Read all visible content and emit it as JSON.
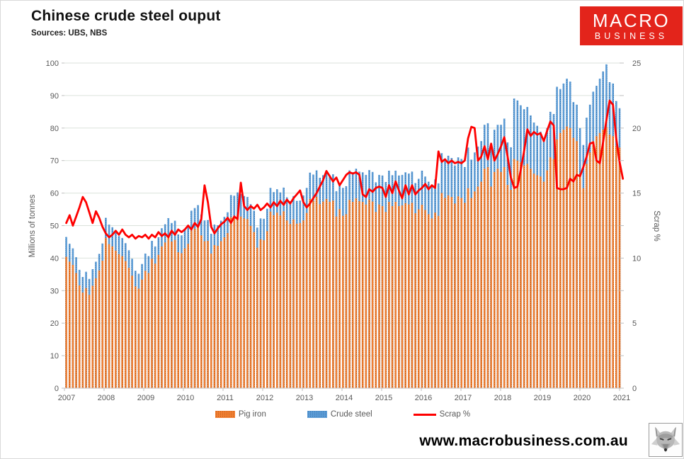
{
  "header": {
    "title": "Chinese crude steel ouput",
    "subtitle": "Sources: UBS, NBS"
  },
  "logo": {
    "line1": "MACRO",
    "line2": "BUSINESS",
    "bg_color": "#e3241b",
    "text_color": "#ffffff"
  },
  "footer": {
    "website": "www.macrobusiness.com.au",
    "icon": "wolf-logo"
  },
  "chart_data": {
    "type": "combo-bar-line",
    "title": "Chinese crude steel ouput",
    "frequency": "monthly",
    "start_period": "2007-01",
    "end_period": "2021-02",
    "grid": true,
    "left_axis": {
      "label": "Millions of tonnes",
      "min": 0,
      "max": 100,
      "tick_step": 10,
      "tick_labels": [
        "0",
        "10",
        "20",
        "30",
        "40",
        "50",
        "60",
        "70",
        "80",
        "90",
        "100"
      ]
    },
    "right_axis": {
      "label": "Scrap %",
      "min": 0,
      "max": 25,
      "tick_step": 5,
      "minor_tick_step": 2.5,
      "tick_labels": [
        "0",
        "5",
        "10",
        "15",
        "20",
        "25"
      ]
    },
    "x_axis": {
      "tick_labels": [
        "2007",
        "2008",
        "2009",
        "2010",
        "2011",
        "2012",
        "2013",
        "2014",
        "2015",
        "2016",
        "2017",
        "2018",
        "2019",
        "2020",
        "2021"
      ]
    },
    "legend": {
      "position": "bottom",
      "entries": [
        {
          "label": "Pig iron",
          "color": "#ED7D31",
          "type": "bar"
        },
        {
          "label": "Crude steel",
          "color": "#5B9BD5",
          "type": "bar"
        },
        {
          "label": "Scrap %",
          "color": "#FF0000",
          "type": "line"
        }
      ]
    },
    "series": {
      "crude_steel": {
        "name": "Crude steel",
        "type": "bar",
        "axis": "left",
        "color": "#5B9BD5",
        "values": [
          46.5,
          44.4,
          43.0,
          40.3,
          36.4,
          34.2,
          35.8,
          33.6,
          36.6,
          38.9,
          41.3,
          44.5,
          52.4,
          50.3,
          49.5,
          48.1,
          46.8,
          46.2,
          44.6,
          42.4,
          39.8,
          36.1,
          35.2,
          38.2,
          41.4,
          40.6,
          45.3,
          43.6,
          46.4,
          49.2,
          50.4,
          52.3,
          50.8,
          51.5,
          47.3,
          47.0,
          48.7,
          50.2,
          54.6,
          55.4,
          56.3,
          53.4,
          51.6,
          51.7,
          47.5,
          50.3,
          50.1,
          51.5,
          52.7,
          54.1,
          59.4,
          59.2,
          60.2,
          59.7,
          59.1,
          58.8,
          56.6,
          54.6,
          49.4,
          52.2,
          52.1,
          55.2,
          61.6,
          60.3,
          61.2,
          60.2,
          61.7,
          58.7,
          57.5,
          59.1,
          57.6,
          57.7,
          59.3,
          61.6,
          66.3,
          65.7,
          67.0,
          64.7,
          65.5,
          66.3,
          65.4,
          65.8,
          60.6,
          62.9,
          61.6,
          62.1,
          67.0,
          66.4,
          67.5,
          66.6,
          66.4,
          65.6,
          67.1,
          66.5,
          63.3,
          65.6,
          65.4,
          63.4,
          66.9,
          65.5,
          66.9,
          65.4,
          65.6,
          66.4,
          66.0,
          66.6,
          63.1,
          64.4,
          66.9,
          65.1,
          63.5,
          62.0,
          64.2,
          63.0,
          72.3,
          70.5,
          71.5,
          70.8,
          68.5,
          71.0,
          70.5,
          68.0,
          74.0,
          70.3,
          72.5,
          74.3,
          76.0,
          81.0,
          81.5,
          74.5,
          79.5,
          81.0,
          81.0,
          82.9,
          75.6,
          74.1,
          89.1,
          88.5,
          87.0,
          85.8,
          86.5,
          83.9,
          81.7,
          80.7,
          78.9,
          76.7,
          80.0,
          85.0,
          84.3,
          92.7,
          92.0,
          93.7,
          95.2,
          94.3,
          88.0,
          87.2,
          80.0,
          74.8,
          83.2,
          87.2,
          91.2,
          93.0,
          95.2,
          97.4,
          99.6,
          94.1,
          93.7,
          88.3,
          86.1,
          null
        ]
      },
      "pig_iron": {
        "name": "Pig iron",
        "type": "bar",
        "axis": "left",
        "color": "#ED7D31",
        "values": [
          40.4,
          38.9,
          37.9,
          35.4,
          31.6,
          29.4,
          30.8,
          28.7,
          31.5,
          33.8,
          36.2,
          39.2,
          46.2,
          44.3,
          43.6,
          42.3,
          41.2,
          40.6,
          39.1,
          37.0,
          34.6,
          31.3,
          30.6,
          33.4,
          36.1,
          35.4,
          39.8,
          38.3,
          41.0,
          43.6,
          44.8,
          46.5,
          45.1,
          45.6,
          41.8,
          41.5,
          43.0,
          44.4,
          48.5,
          49.0,
          49.8,
          47.0,
          45.2,
          45.3,
          41.4,
          44.0,
          43.8,
          45.2,
          46.4,
          47.7,
          52.6,
          52.4,
          53.3,
          52.8,
          52.2,
          52.0,
          49.9,
          48.0,
          43.2,
          45.8,
          45.5,
          48.3,
          54.3,
          53.2,
          54.0,
          53.1,
          54.4,
          51.6,
          50.5,
          51.9,
          50.6,
          50.8,
          51.6,
          53.9,
          58.2,
          57.6,
          58.9,
          56.6,
          57.4,
          58.2,
          57.3,
          57.7,
          52.8,
          55.1,
          53.0,
          53.5,
          57.9,
          57.3,
          58.4,
          57.5,
          57.3,
          56.5,
          58.0,
          57.4,
          54.2,
          56.5,
          56.0,
          54.2,
          57.3,
          56.0,
          57.3,
          56.0,
          56.2,
          56.9,
          56.5,
          57.0,
          53.8,
          55.0,
          56.4,
          54.8,
          53.5,
          52.2,
          54.0,
          53.0,
          60.0,
          58.5,
          59.3,
          58.8,
          56.8,
          59.0,
          58.5,
          57.0,
          61.5,
          58.5,
          60.5,
          62.0,
          63.5,
          67.5,
          68.0,
          62.0,
          66.5,
          67.5,
          66.5,
          68.0,
          62.5,
          61.0,
          70.5,
          70.0,
          69.5,
          68.5,
          69.0,
          67.5,
          66.0,
          65.5,
          65.1,
          63.5,
          67.0,
          71.0,
          70.5,
          76.5,
          78.5,
          79.5,
          80.5,
          80.0,
          77.0,
          76.0,
          66.0,
          61.5,
          69.0,
          72.5,
          76.0,
          77.5,
          78.5,
          79.5,
          80.3,
          78.0,
          77.5,
          74.5,
          74.0,
          null
        ]
      },
      "scrap_pct": {
        "name": "Scrap %",
        "type": "line",
        "axis": "right",
        "color": "#FF0000",
        "values": [
          12.7,
          13.3,
          12.5,
          13.2,
          13.9,
          14.7,
          14.3,
          13.5,
          12.7,
          13.6,
          13.1,
          12.4,
          11.9,
          11.6,
          11.8,
          12.1,
          11.8,
          12.2,
          11.8,
          11.6,
          11.8,
          11.5,
          11.7,
          11.6,
          11.8,
          11.5,
          11.8,
          11.6,
          12.0,
          11.7,
          11.9,
          11.6,
          12.1,
          11.8,
          12.2,
          12.0,
          12.2,
          12.5,
          12.2,
          12.7,
          12.4,
          13.0,
          15.6,
          14.3,
          12.4,
          11.9,
          12.3,
          12.6,
          12.8,
          13.1,
          12.7,
          13.2,
          13.0,
          15.8,
          14.0,
          13.7,
          14.0,
          13.8,
          14.1,
          13.7,
          13.9,
          14.2,
          13.9,
          14.3,
          14.0,
          14.4,
          14.1,
          14.5,
          14.2,
          14.6,
          14.9,
          15.2,
          14.3,
          13.9,
          14.2,
          14.6,
          15.0,
          15.5,
          16.0,
          16.7,
          16.3,
          15.9,
          16.2,
          15.6,
          16.0,
          16.4,
          16.6,
          16.5,
          16.6,
          16.4,
          14.9,
          14.7,
          15.3,
          15.1,
          15.4,
          15.5,
          15.4,
          14.7,
          15.6,
          15.0,
          15.9,
          15.2,
          14.6,
          15.6,
          14.9,
          15.6,
          14.9,
          15.2,
          15.4,
          15.7,
          15.3,
          15.6,
          15.4,
          18.2,
          17.4,
          17.6,
          17.3,
          17.5,
          17.3,
          17.4,
          17.3,
          17.5,
          19.2,
          20.1,
          20.0,
          17.5,
          17.8,
          18.6,
          17.6,
          18.8,
          17.5,
          18.0,
          18.6,
          19.3,
          17.8,
          16.2,
          15.4,
          15.5,
          16.8,
          18.2,
          19.9,
          19.4,
          19.7,
          19.5,
          19.6,
          19.0,
          19.8,
          20.5,
          20.2,
          15.4,
          15.3,
          15.3,
          15.4,
          16.1,
          15.9,
          16.4,
          16.3,
          17.0,
          17.8,
          18.8,
          18.9,
          17.5,
          17.3,
          18.9,
          20.6,
          22.1,
          21.8,
          19.2,
          17.4,
          16.1
        ]
      }
    },
    "style": {
      "bar_fill_orange": "#f07e32",
      "bar_dot_orange": "#b35309",
      "bar_fill_blue": "#5b9bd5",
      "bar_dot_blue": "#2e6da8",
      "line_red": "#fe0000",
      "gridline": "#dbe2db",
      "axis_line": "#bfbfbf",
      "tick_text": "#595959"
    }
  }
}
